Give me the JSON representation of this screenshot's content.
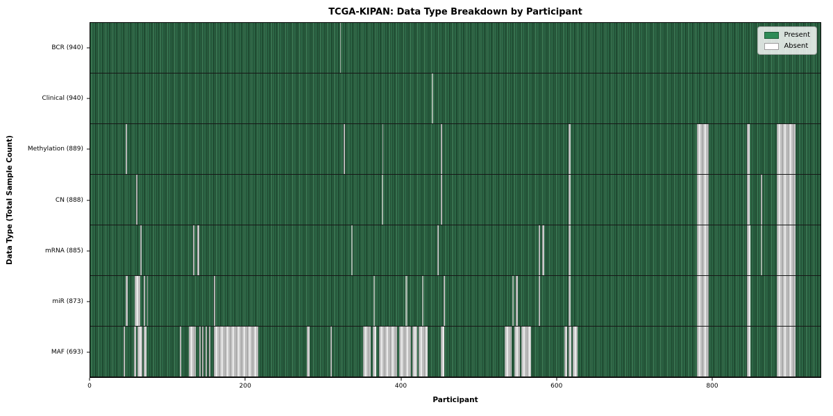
{
  "chart_data": {
    "type": "heatmap",
    "title": "TCGA-KIPAN: Data Type Breakdown by Participant",
    "xlabel": "Participant",
    "ylabel": "Data Type (Total Sample Count)",
    "x_max": 940,
    "x_ticks": [
      0,
      200,
      400,
      600,
      800
    ],
    "grid": "row-separators",
    "legend": {
      "position": "upper-right",
      "entries": [
        {
          "label": "Present",
          "color": "#2e8b57"
        },
        {
          "label": "Absent",
          "color": "#ffffff"
        }
      ]
    },
    "colors": {
      "present_fill": "#2e8b57",
      "present_rendered_band": "#2d6746",
      "bar_edge": "#1a1a1a",
      "absent_fill": "#ffffff",
      "absent_rendered": "#c6c6c6",
      "background": "#ffffff"
    },
    "rows": [
      {
        "data_type": "BCR",
        "label": "BCR (940)",
        "total": 940,
        "absent_ranges": [
          [
            322,
            323,
            "faint"
          ]
        ]
      },
      {
        "data_type": "Clinical",
        "label": "Clinical (940)",
        "total": 940,
        "absent_ranges": [
          [
            440,
            441,
            "faint"
          ]
        ]
      },
      {
        "data_type": "Methylation",
        "label": "Methylation (889)",
        "total": 889,
        "absent_ranges": [
          [
            46,
            47
          ],
          [
            326,
            328
          ],
          [
            376,
            377
          ],
          [
            451,
            453
          ],
          [
            616,
            618
          ],
          [
            781,
            796
          ],
          [
            845,
            849
          ],
          [
            884,
            908
          ]
        ]
      },
      {
        "data_type": "CN",
        "label": "CN (888)",
        "total": 888,
        "absent_ranges": [
          [
            59,
            61
          ],
          [
            375,
            377,
            "faint"
          ],
          [
            451,
            453
          ],
          [
            616,
            618
          ],
          [
            781,
            796
          ],
          [
            845,
            849
          ],
          [
            863,
            865
          ],
          [
            884,
            908
          ]
        ]
      },
      {
        "data_type": "mRNA",
        "label": "mRNA (885)",
        "total": 885,
        "absent_ranges": [
          [
            64,
            66
          ],
          [
            132,
            134
          ],
          [
            138,
            140
          ],
          [
            336,
            338,
            "faint"
          ],
          [
            447,
            449
          ],
          [
            577,
            579
          ],
          [
            582,
            584
          ],
          [
            616,
            618
          ],
          [
            781,
            796
          ],
          [
            845,
            850
          ],
          [
            863,
            865,
            "faint"
          ],
          [
            884,
            908
          ]
        ]
      },
      {
        "data_type": "miR",
        "label": "miR (873)",
        "total": 873,
        "absent_ranges": [
          [
            46,
            48
          ],
          [
            57,
            64
          ],
          [
            69,
            71
          ],
          [
            73,
            74
          ],
          [
            159,
            161
          ],
          [
            365,
            366,
            "faint"
          ],
          [
            406,
            408,
            "faint"
          ],
          [
            427,
            429,
            "faint"
          ],
          [
            455,
            457
          ],
          [
            543,
            545,
            "faint"
          ],
          [
            548,
            550
          ],
          [
            577,
            579
          ],
          [
            616,
            618
          ],
          [
            781,
            796
          ],
          [
            845,
            850
          ],
          [
            884,
            908
          ]
        ]
      },
      {
        "data_type": "MAF",
        "label": "MAF (693)",
        "total": 693,
        "absent_ranges": [
          [
            43,
            45
          ],
          [
            56,
            59
          ],
          [
            61,
            67
          ],
          [
            69,
            72
          ],
          [
            115,
            117
          ],
          [
            127,
            136
          ],
          [
            140,
            142
          ],
          [
            144,
            146
          ],
          [
            148,
            150
          ],
          [
            153,
            155
          ],
          [
            159,
            216
          ],
          [
            279,
            282
          ],
          [
            309,
            311
          ],
          [
            351,
            361
          ],
          [
            364,
            368
          ],
          [
            372,
            395
          ],
          [
            398,
            413
          ],
          [
            415,
            421
          ],
          [
            423,
            434
          ],
          [
            451,
            456
          ],
          [
            533,
            542
          ],
          [
            546,
            553
          ],
          [
            555,
            567
          ],
          [
            610,
            614
          ],
          [
            616,
            619
          ],
          [
            621,
            627
          ],
          [
            781,
            796
          ],
          [
            845,
            850
          ],
          [
            884,
            908
          ]
        ]
      }
    ]
  }
}
